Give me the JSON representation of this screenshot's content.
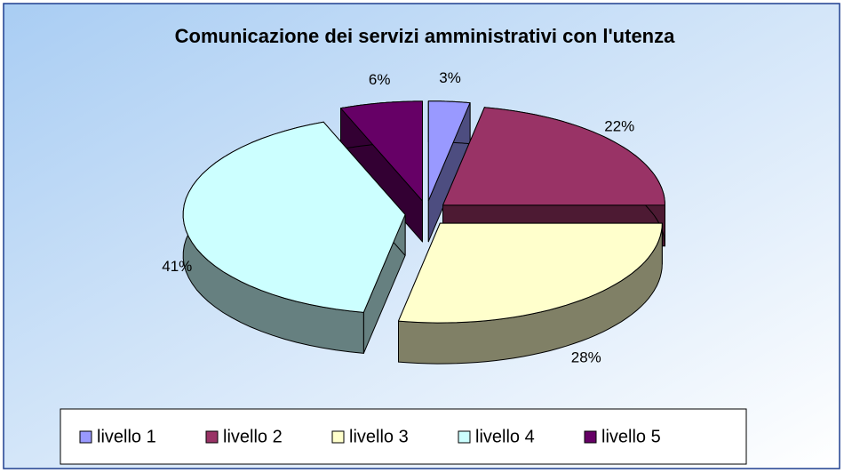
{
  "chart_data": {
    "type": "pie",
    "title": "Comunicazione dei servizi amministrativi con l'utenza",
    "categories": [
      "livello 1",
      "livello 2",
      "livello 3",
      "livello 4",
      "livello 5"
    ],
    "values": [
      3,
      22,
      28,
      41,
      6
    ],
    "value_labels": [
      "3%",
      "22%",
      "28%",
      "41%",
      "6%"
    ],
    "colors": [
      "#9999ff",
      "#993366",
      "#ffffcc",
      "#ccffff",
      "#660066"
    ],
    "legend": "bottom"
  }
}
